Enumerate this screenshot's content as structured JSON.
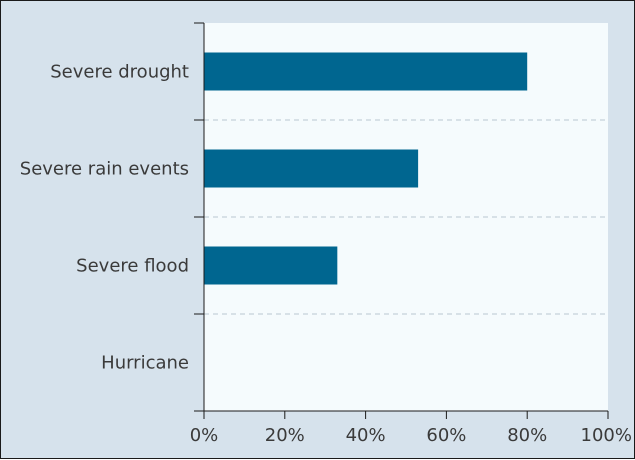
{
  "chart_data": {
    "type": "bar",
    "orientation": "horizontal",
    "categories": [
      "Severe drought",
      "Severe rain events",
      "Severe flood",
      "Hurricane"
    ],
    "values": [
      80,
      53,
      33,
      0
    ],
    "xlim": [
      0,
      100
    ],
    "xticks": [
      "0%",
      "20%",
      "40%",
      "60%",
      "80%",
      "100%"
    ],
    "grid": "horizontal dashed separators",
    "colors": {
      "bar": "#006690",
      "plot_bg": "#f5fbfd",
      "outer_bg": "#d6e2ec",
      "text": "#3a3a3a"
    }
  }
}
